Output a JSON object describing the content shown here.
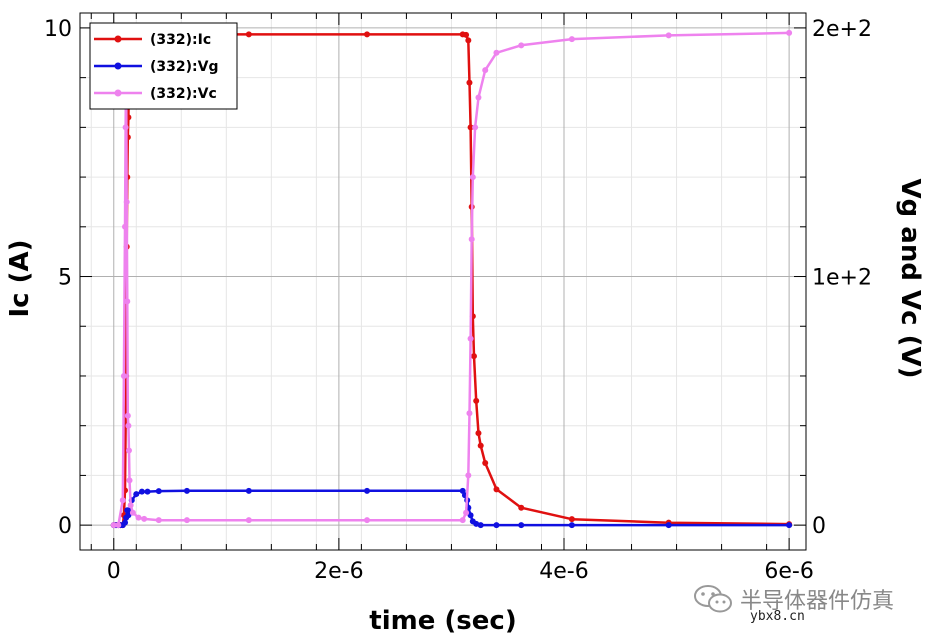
{
  "chart_data": {
    "type": "line",
    "xlabel": "time (sec)",
    "ylabel_left": "Ic (A)",
    "ylabel_right": "Vg and Vc (V)",
    "xlim": [
      -3e-07,
      6.15e-06
    ],
    "ylim_left": [
      -0.5,
      10.3
    ],
    "ylim_right": [
      -10,
      206
    ],
    "x_ticks": [
      {
        "value": 0,
        "label": "0"
      },
      {
        "value": 2e-06,
        "label": "2e-6"
      },
      {
        "value": 4e-06,
        "label": "4e-6"
      },
      {
        "value": 6e-06,
        "label": "6e-6"
      }
    ],
    "y_left_ticks": [
      {
        "value": 0,
        "label": "0"
      },
      {
        "value": 5,
        "label": "5"
      },
      {
        "value": 10,
        "label": "10"
      }
    ],
    "y_right_ticks": [
      {
        "value": 0,
        "label": "0"
      },
      {
        "value": 100,
        "label": "1e+2"
      },
      {
        "value": 200,
        "label": "2e+2"
      }
    ],
    "grid": true,
    "legend_position": "top-left",
    "series": [
      {
        "name": "(332):Ic",
        "axis": "left",
        "color": "#e01010",
        "x": [
          0,
          2e-08,
          4e-08,
          6e-08,
          8e-08,
          9e-08,
          1e-07,
          1.05e-07,
          1.1e-07,
          1.15e-07,
          1.2e-07,
          1.25e-07,
          1.3e-07,
          1.35e-07,
          1.45e-07,
          1.6e-07,
          2e-07,
          2.7e-07,
          4e-07,
          6.5e-07,
          1.2e-06,
          2.25e-06,
          3.1e-06,
          3.13e-06,
          3.15e-06,
          3.16e-06,
          3.17e-06,
          3.18e-06,
          3.19e-06,
          3.2e-06,
          3.22e-06,
          3.24e-06,
          3.26e-06,
          3.3e-06,
          3.4e-06,
          3.62e-06,
          4.07e-06,
          4.93e-06,
          6e-06
        ],
        "y": [
          0,
          0,
          0,
          0,
          0,
          0.2,
          0.7,
          2.0,
          3.0,
          5.6,
          7.0,
          7.8,
          8.2,
          9.0,
          9.7,
          9.85,
          9.87,
          9.87,
          9.87,
          9.87,
          9.87,
          9.87,
          9.87,
          9.86,
          9.75,
          8.9,
          8.0,
          6.4,
          4.2,
          3.4,
          2.5,
          1.85,
          1.6,
          1.25,
          0.72,
          0.35,
          0.12,
          0.05,
          0.02
        ]
      },
      {
        "name": "(332):Vg",
        "axis": "right",
        "color": "#1010e0",
        "x": [
          0,
          2e-08,
          4e-08,
          6e-08,
          8e-08,
          1e-07,
          1.1e-07,
          1.2e-07,
          1.3e-07,
          1.4e-07,
          1.6e-07,
          2e-07,
          2.5e-07,
          3e-07,
          4e-07,
          6.5e-07,
          1.2e-06,
          2.25e-06,
          3.1e-06,
          3.12e-06,
          3.14e-06,
          3.15e-06,
          3.17e-06,
          3.19e-06,
          3.22e-06,
          3.26e-06,
          3.4e-06,
          3.62e-06,
          4.07e-06,
          4.93e-06,
          6e-06
        ],
        "y": [
          0,
          0,
          0,
          0,
          0,
          1,
          3,
          6,
          4,
          6,
          10,
          12.5,
          13.5,
          13.5,
          13.7,
          13.8,
          13.8,
          13.8,
          13.8,
          12,
          10,
          7,
          4,
          1.5,
          0.5,
          0,
          0,
          0,
          0,
          0,
          0
        ]
      },
      {
        "name": "(332):Vc",
        "axis": "right",
        "color": "#ee82ee",
        "x": [
          0,
          4e-08,
          8e-08,
          9e-08,
          1e-07,
          1.05e-07,
          1.1e-07,
          1.15e-07,
          1.2e-07,
          1.25e-07,
          1.3e-07,
          1.35e-07,
          1.4e-07,
          1.5e-07,
          1.7e-07,
          2.2e-07,
          2.7e-07,
          4e-07,
          6.5e-07,
          1.2e-06,
          2.25e-06,
          3.1e-06,
          3.13e-06,
          3.15e-06,
          3.16e-06,
          3.17e-06,
          3.18e-06,
          3.19e-06,
          3.21e-06,
          3.24e-06,
          3.3e-06,
          3.4e-06,
          3.62e-06,
          4.07e-06,
          4.93e-06,
          6e-06
        ],
        "y": [
          0,
          0,
          10,
          60,
          120,
          160,
          185,
          130,
          90,
          44,
          40,
          30,
          18,
          8,
          5,
          3,
          2.5,
          2,
          2,
          2,
          2,
          2,
          5,
          20,
          45,
          75,
          115,
          140,
          160,
          172,
          183,
          190,
          193,
          195.5,
          197,
          198
        ]
      }
    ]
  },
  "watermark": {
    "text": "半导体器件仿真",
    "url": "ybx8.cn",
    "icon": "wechat-icon"
  }
}
